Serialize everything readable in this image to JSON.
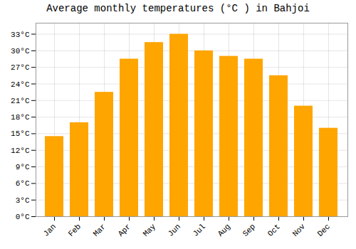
{
  "chart_data": {
    "type": "bar",
    "title": "Average monthly temperatures (°C ) in Bahjoi",
    "categories": [
      "Jan",
      "Feb",
      "Mar",
      "Apr",
      "May",
      "Jun",
      "Jul",
      "Aug",
      "Sep",
      "Oct",
      "Nov",
      "Dec"
    ],
    "values": [
      14.5,
      17.0,
      22.5,
      28.5,
      31.5,
      33.0,
      30.0,
      29.0,
      28.5,
      25.5,
      20.0,
      16.0
    ],
    "color": "#FFA500",
    "ylim": [
      0,
      35
    ],
    "yticks": [
      {
        "value": 0,
        "label": "0°C"
      },
      {
        "value": 3,
        "label": "3°C"
      },
      {
        "value": 6,
        "label": "6°C"
      },
      {
        "value": 9,
        "label": "9°C"
      },
      {
        "value": 12,
        "label": "12°C"
      },
      {
        "value": 15,
        "label": "15°C"
      },
      {
        "value": 18,
        "label": "18°C"
      },
      {
        "value": 21,
        "label": "21°C"
      },
      {
        "value": 24,
        "label": "24°C"
      },
      {
        "value": 27,
        "label": "27°C"
      },
      {
        "value": 30,
        "label": "30°C"
      },
      {
        "value": 33,
        "label": "33°C"
      }
    ],
    "grid": true
  }
}
